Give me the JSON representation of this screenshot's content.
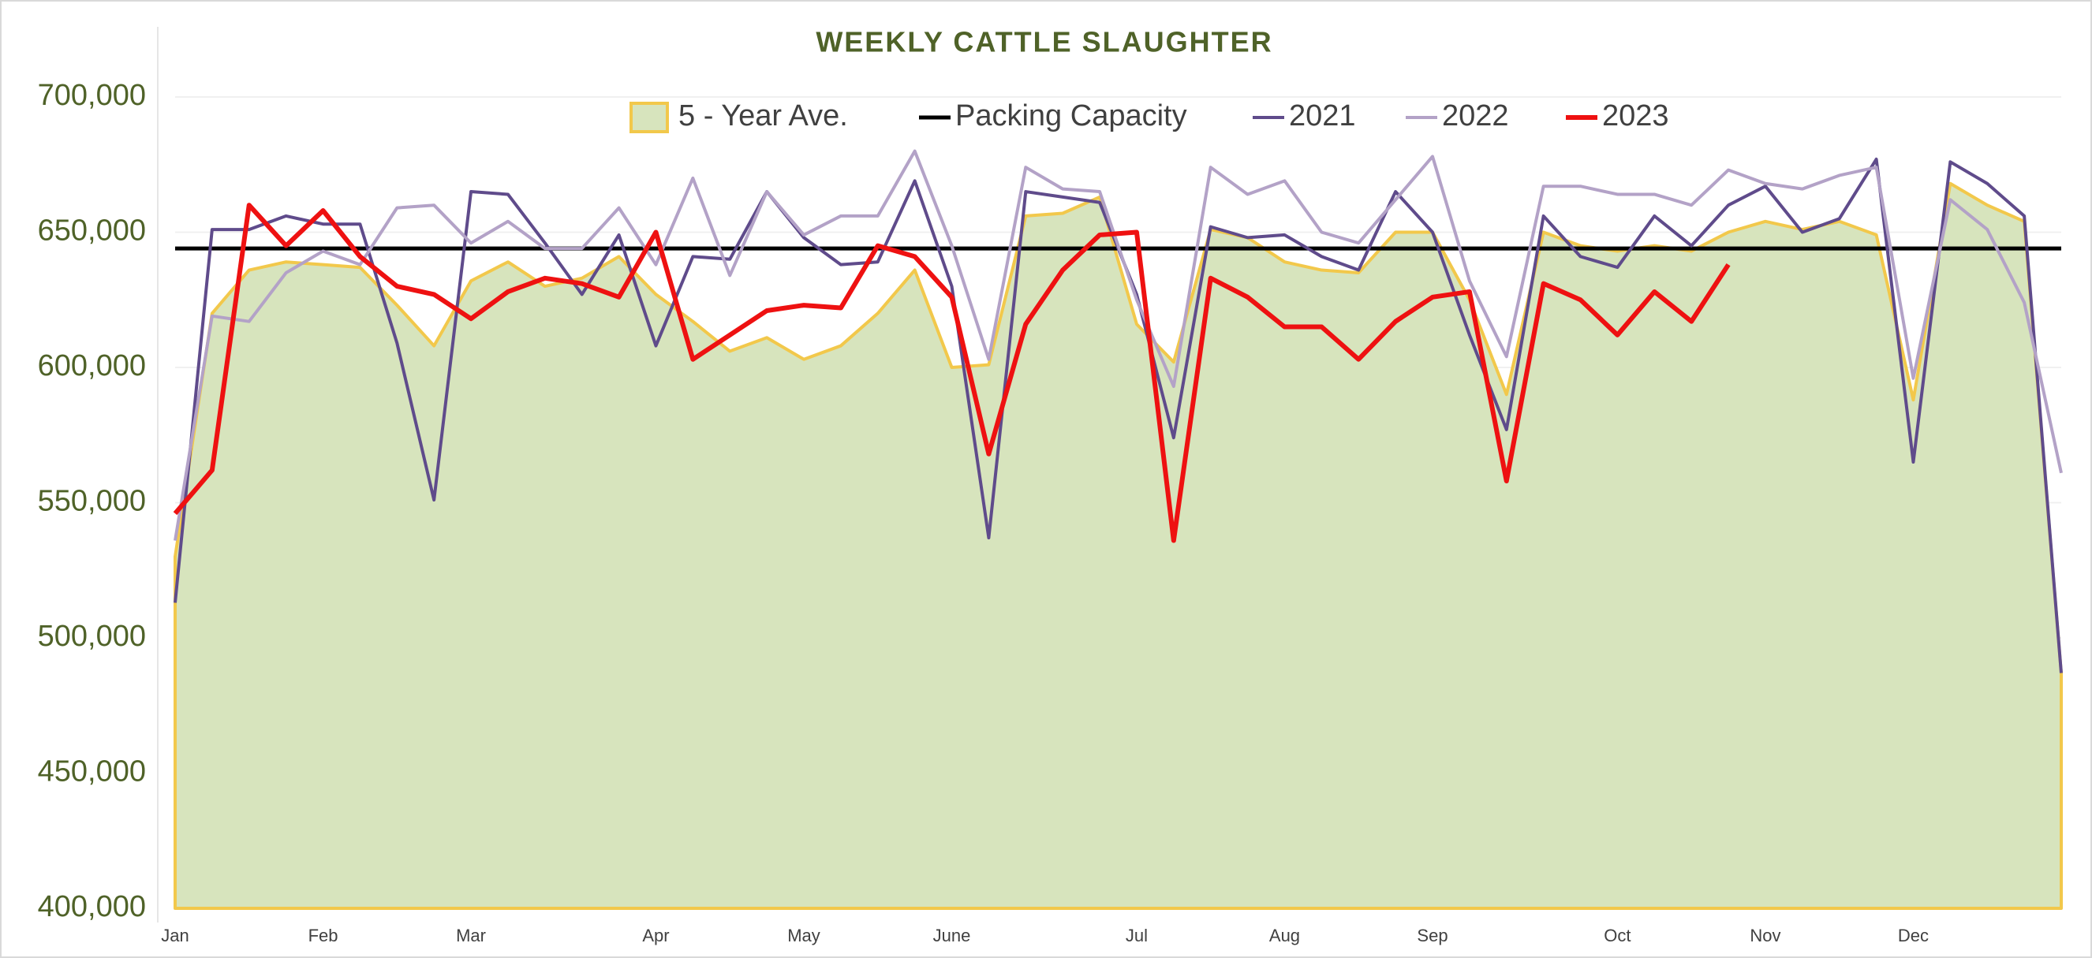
{
  "chart_data": {
    "type": "line",
    "title": "WEEKLY CATTLE SLAUGHTER",
    "categories": [
      "Jan",
      null,
      null,
      null,
      "Feb",
      null,
      null,
      null,
      "Mar",
      null,
      null,
      null,
      null,
      "Apr",
      null,
      null,
      null,
      "May",
      null,
      null,
      null,
      "June",
      null,
      null,
      null,
      null,
      "Jul",
      null,
      null,
      null,
      "Aug",
      null,
      null,
      null,
      "Sep",
      null,
      null,
      null,
      null,
      "Oct",
      null,
      null,
      null,
      "Nov",
      null,
      null,
      null,
      "Dec",
      null,
      null,
      null,
      null
    ],
    "ylim": [
      400000,
      700000
    ],
    "yticks": [
      {
        "value": 400000,
        "label": "400,000"
      },
      {
        "value": 450000,
        "label": "450,000"
      },
      {
        "value": 500000,
        "label": "500,000"
      },
      {
        "value": 550000,
        "label": "550,000"
      },
      {
        "value": 600000,
        "label": "600,000"
      },
      {
        "value": 650000,
        "label": "650,000"
      },
      {
        "value": 700000,
        "label": "700,000"
      }
    ],
    "grid": true,
    "legend": "top",
    "series": [
      {
        "name": "5 - Year Ave.",
        "type": "area",
        "color": "#d7e4bd",
        "edge_color": "#f2c84b",
        "values": [
          530000,
          620000,
          636000,
          639000,
          638000,
          637000,
          623000,
          608000,
          632000,
          639000,
          630000,
          633000,
          641000,
          627000,
          617000,
          606000,
          611000,
          603000,
          608000,
          620000,
          636000,
          600000,
          601000,
          656000,
          657000,
          663000,
          616000,
          602000,
          651000,
          648000,
          639000,
          636000,
          635000,
          650000,
          650000,
          625000,
          590000,
          650000,
          645000,
          643000,
          645000,
          643000,
          650000,
          654000,
          651000,
          654000,
          649000,
          588000,
          668000,
          660000,
          654000,
          487000
        ]
      },
      {
        "name": "Packing Capacity",
        "type": "line",
        "color": "#000000",
        "width": 5,
        "values": [
          644000,
          644000,
          644000,
          644000,
          644000,
          644000,
          644000,
          644000,
          644000,
          644000,
          644000,
          644000,
          644000,
          644000,
          644000,
          644000,
          644000,
          644000,
          644000,
          644000,
          644000,
          644000,
          644000,
          644000,
          644000,
          644000,
          644000,
          644000,
          644000,
          644000,
          644000,
          644000,
          644000,
          644000,
          644000,
          644000,
          644000,
          644000,
          644000,
          644000,
          644000,
          644000,
          644000,
          644000,
          644000,
          644000,
          644000,
          644000,
          644000,
          644000,
          644000,
          644000
        ]
      },
      {
        "name": "2021",
        "type": "line",
        "color": "#5f4b8b",
        "width": 4,
        "values": [
          513000,
          651000,
          651000,
          656000,
          653000,
          653000,
          609000,
          551000,
          665000,
          664000,
          646000,
          627000,
          649000,
          608000,
          641000,
          640000,
          665000,
          648000,
          638000,
          639000,
          669000,
          630000,
          537000,
          665000,
          663000,
          661000,
          627000,
          574000,
          652000,
          648000,
          649000,
          641000,
          636000,
          665000,
          650000,
          612000,
          577000,
          656000,
          641000,
          637000,
          656000,
          645000,
          660000,
          667000,
          650000,
          655000,
          677000,
          565000,
          676000,
          668000,
          656000,
          487000
        ]
      },
      {
        "name": "2022",
        "type": "line",
        "color": "#b3a2c7",
        "width": 4,
        "values": [
          536000,
          619000,
          617000,
          635000,
          643000,
          638000,
          659000,
          660000,
          646000,
          654000,
          644000,
          644000,
          659000,
          638000,
          670000,
          634000,
          665000,
          649000,
          656000,
          656000,
          680000,
          645000,
          603000,
          674000,
          666000,
          665000,
          625000,
          593000,
          674000,
          664000,
          669000,
          650000,
          646000,
          662000,
          678000,
          632000,
          604000,
          667000,
          667000,
          664000,
          664000,
          660000,
          673000,
          668000,
          666000,
          671000,
          674000,
          596000,
          662000,
          651000,
          624000,
          561000
        ]
      },
      {
        "name": "2023",
        "type": "line",
        "color": "#ee1111",
        "width": 6,
        "values": [
          546000,
          562000,
          660000,
          645000,
          658000,
          641000,
          630000,
          627000,
          618000,
          628000,
          633000,
          631000,
          626000,
          650000,
          603000,
          612000,
          621000,
          623000,
          622000,
          645000,
          641000,
          626000,
          568000,
          616000,
          636000,
          649000,
          650000,
          536000,
          633000,
          626000,
          615000,
          615000,
          603000,
          617000,
          626000,
          628000,
          558000,
          631000,
          625000,
          612000,
          628000,
          617000,
          638000,
          null,
          null,
          null,
          null,
          null,
          null,
          null,
          null,
          null
        ]
      }
    ]
  }
}
